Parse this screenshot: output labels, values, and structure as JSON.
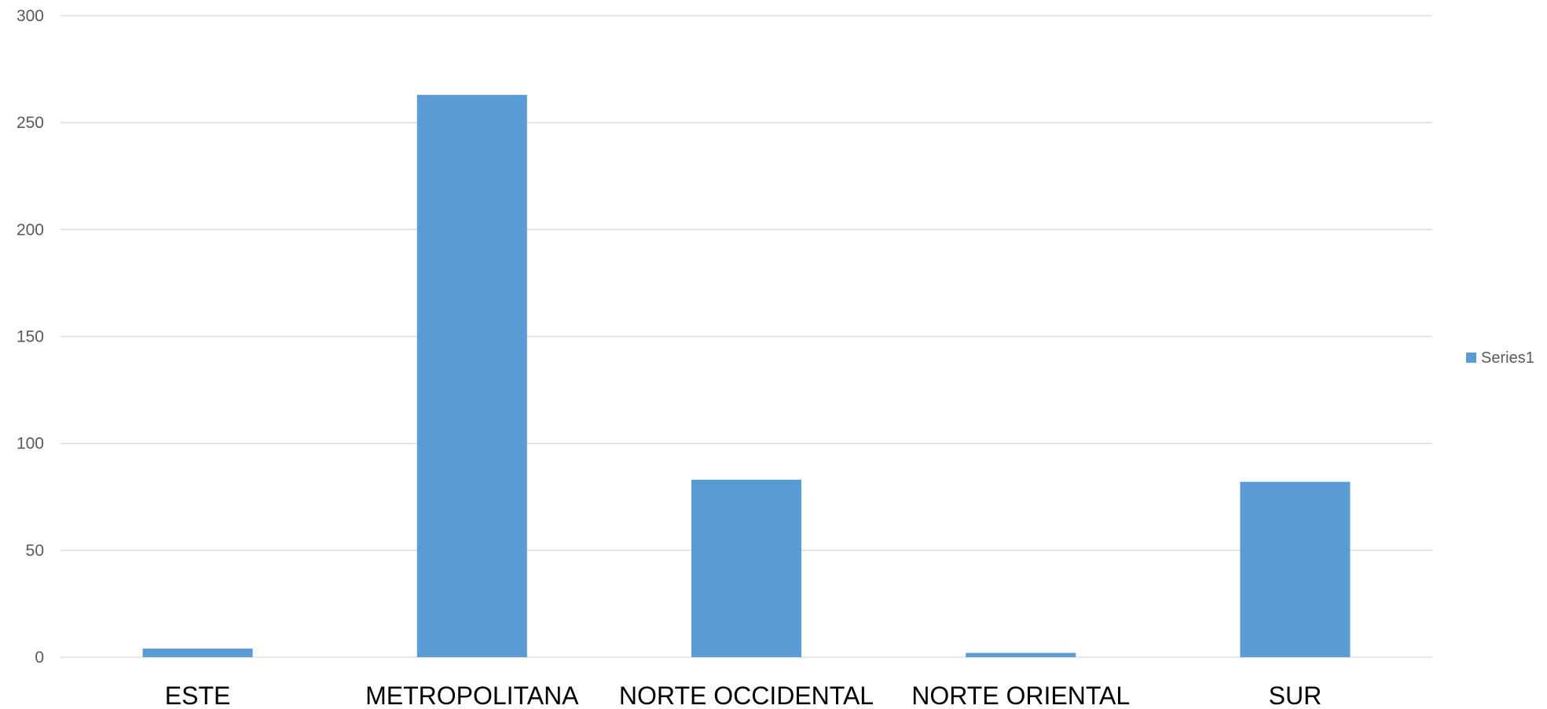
{
  "chart_data": {
    "type": "bar",
    "categories": [
      "ESTE",
      "METROPOLITANA",
      "NORTE OCCIDENTAL",
      "NORTE ORIENTAL",
      "SUR"
    ],
    "series": [
      {
        "name": "Series1",
        "values": [
          4,
          263,
          83,
          2,
          82
        ],
        "color": "#5b9bd5"
      }
    ],
    "yticks": [
      "0",
      "50",
      "100",
      "150",
      "200",
      "250",
      "300"
    ],
    "ylim": [
      0,
      300
    ],
    "grid": true,
    "legend_position": "right",
    "title": "",
    "xlabel": "",
    "ylabel": ""
  }
}
